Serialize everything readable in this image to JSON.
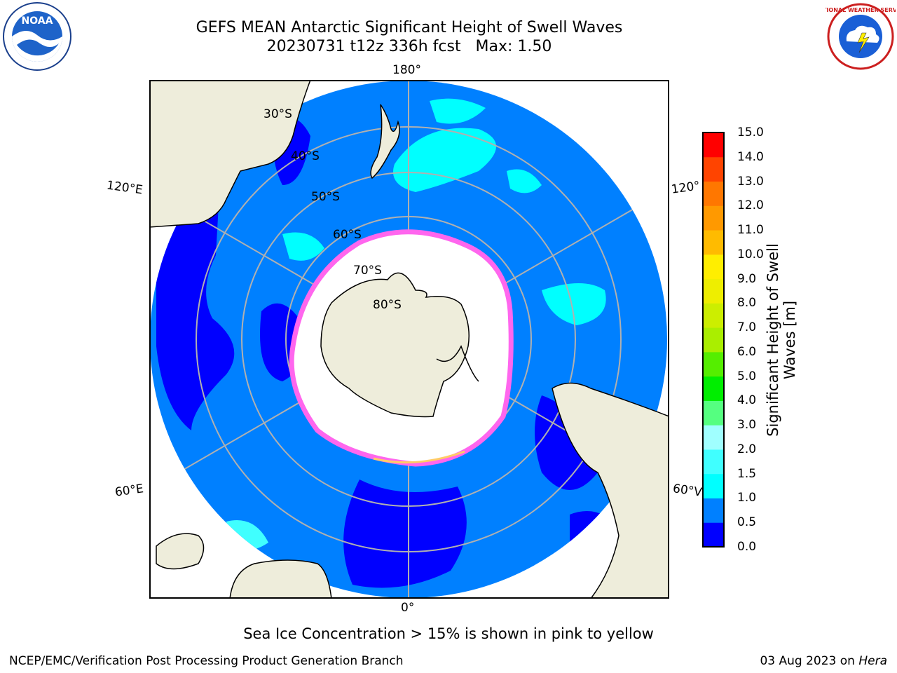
{
  "header": {
    "title_line1": "GEFS MEAN Antarctic Significant Height of Swell Waves",
    "title_line2": "20230731 t12z 336h fcst   Max: 1.50"
  },
  "map": {
    "projection": "south-polar-stereographic",
    "longitude_labels": {
      "top": "180°",
      "bottom": "0°",
      "upper_left": "120°E",
      "lower_left": "60°E",
      "upper_right": "120°",
      "lower_right": "60°V"
    },
    "latitude_labels": [
      "30°S",
      "40°S",
      "50°S",
      "60°S",
      "70°S",
      "80°S"
    ],
    "colors": {
      "land": "#eeeddb",
      "ocean_background": "#0080ff",
      "sea_ice": "#ffffff",
      "ice_edge": "#ff66ee"
    }
  },
  "colorbar": {
    "label": "Significant Height of Swell Waves [m]",
    "ticks": [
      "0.0",
      "0.5",
      "1.0",
      "1.5",
      "2.0",
      "3.0",
      "4.0",
      "5.0",
      "6.0",
      "7.0",
      "8.0",
      "9.0",
      "10.0",
      "11.0",
      "12.0",
      "13.0",
      "14.0",
      "15.0"
    ],
    "colors": [
      "#0000ff",
      "#0080ff",
      "#00ffff",
      "#40ffff",
      "#a0ffff",
      "#55ff80",
      "#00ee00",
      "#55ee00",
      "#aaee00",
      "#ccee00",
      "#eeee00",
      "#ffee00",
      "#ffbb00",
      "#ff9900",
      "#ff7700",
      "#ff4400",
      "#ff0000"
    ]
  },
  "logos": {
    "left": "NOAA",
    "right": "NATIONAL WEATHER SERVICE"
  },
  "note": "Sea Ice Concentration > 15% is shown in pink to yellow",
  "footer": {
    "left": "NCEP/EMC/Verification Post Processing Product Generation Branch",
    "date": "03 Aug 2023 on ",
    "host": "Hera"
  }
}
